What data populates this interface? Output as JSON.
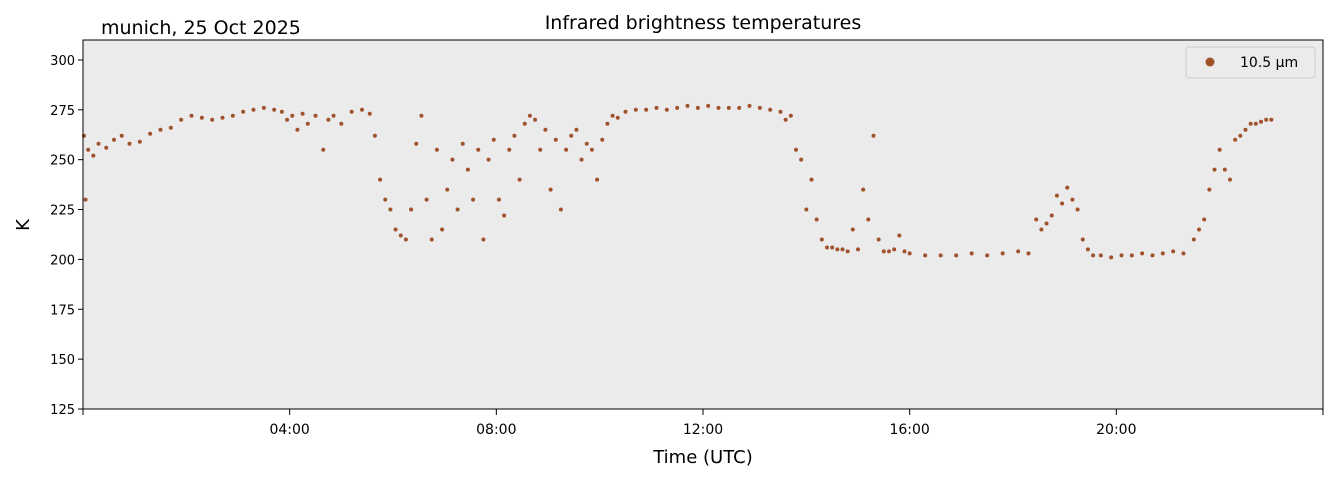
{
  "chart_data": {
    "type": "scatter",
    "title": "Infrared brightness temperatures",
    "subtitle": "munich, 25 Oct 2025",
    "xlabel": "Time (UTC)",
    "ylabel": "K",
    "xlim": [
      0,
      24
    ],
    "ylim": [
      125,
      310
    ],
    "xticks": [
      0,
      4,
      8,
      12,
      16,
      20,
      24
    ],
    "xtick_labels": [
      "",
      "04:00",
      "08:00",
      "12:00",
      "16:00",
      "20:00",
      ""
    ],
    "yticks": [
      125,
      150,
      175,
      200,
      225,
      250,
      275,
      300
    ],
    "ytick_labels": [
      "125",
      "150",
      "175",
      "200",
      "225",
      "250",
      "275",
      "300"
    ],
    "grid": false,
    "legend_position": "top-right",
    "plot_background": "#ebebeb",
    "series": [
      {
        "name": "10.5 µm",
        "color": "#a0522d",
        "x": [
          0.02,
          0.05,
          0.1,
          0.2,
          0.3,
          0.45,
          0.6,
          0.75,
          0.9,
          1.1,
          1.3,
          1.5,
          1.7,
          1.9,
          2.1,
          2.3,
          2.5,
          2.7,
          2.9,
          3.1,
          3.3,
          3.5,
          3.7,
          3.85,
          3.95,
          4.05,
          4.15,
          4.25,
          4.35,
          4.5,
          4.65,
          4.75,
          4.85,
          5.0,
          5.2,
          5.4,
          5.55,
          5.65,
          5.75,
          5.85,
          5.95,
          6.05,
          6.15,
          6.25,
          6.35,
          6.45,
          6.55,
          6.65,
          6.75,
          6.85,
          6.95,
          7.05,
          7.15,
          7.25,
          7.35,
          7.45,
          7.55,
          7.65,
          7.75,
          7.85,
          7.95,
          8.05,
          8.15,
          8.25,
          8.35,
          8.45,
          8.55,
          8.65,
          8.75,
          8.85,
          8.95,
          9.05,
          9.15,
          9.25,
          9.35,
          9.45,
          9.55,
          9.65,
          9.75,
          9.85,
          9.95,
          10.05,
          10.15,
          10.25,
          10.35,
          10.5,
          10.7,
          10.9,
          11.1,
          11.3,
          11.5,
          11.7,
          11.9,
          12.1,
          12.3,
          12.5,
          12.7,
          12.9,
          13.1,
          13.3,
          13.5,
          13.6,
          13.7,
          13.8,
          13.9,
          14.0,
          14.1,
          14.2,
          14.3,
          14.4,
          14.5,
          14.6,
          14.7,
          14.8,
          14.9,
          15.0,
          15.1,
          15.2,
          15.3,
          15.4,
          15.5,
          15.6,
          15.7,
          15.8,
          15.9,
          16.0,
          16.3,
          16.6,
          16.9,
          17.2,
          17.5,
          17.8,
          18.1,
          18.3,
          18.45,
          18.55,
          18.65,
          18.75,
          18.85,
          18.95,
          19.05,
          19.15,
          19.25,
          19.35,
          19.45,
          19.55,
          19.7,
          19.9,
          20.1,
          20.3,
          20.5,
          20.7,
          20.9,
          21.1,
          21.3,
          21.5,
          21.6,
          21.7,
          21.8,
          21.9,
          22.0,
          22.1,
          22.2,
          22.3,
          22.4,
          22.5,
          22.6,
          22.7,
          22.8,
          22.9,
          23.0
        ],
        "y": [
          262,
          230,
          255,
          252,
          258,
          256,
          260,
          262,
          258,
          259,
          263,
          265,
          266,
          270,
          272,
          271,
          270,
          271,
          272,
          274,
          275,
          276,
          275,
          274,
          270,
          272,
          265,
          273,
          268,
          272,
          255,
          270,
          272,
          268,
          274,
          275,
          273,
          262,
          240,
          230,
          225,
          215,
          212,
          210,
          225,
          258,
          272,
          230,
          210,
          255,
          215,
          235,
          250,
          225,
          258,
          245,
          230,
          255,
          210,
          250,
          260,
          230,
          222,
          255,
          262,
          240,
          268,
          272,
          270,
          255,
          265,
          235,
          260,
          225,
          255,
          262,
          265,
          250,
          258,
          255,
          240,
          260,
          268,
          272,
          271,
          274,
          275,
          275,
          276,
          275,
          276,
          277,
          276,
          277,
          276,
          276,
          276,
          277,
          276,
          275,
          274,
          270,
          272,
          255,
          250,
          225,
          240,
          220,
          210,
          206,
          206,
          205,
          205,
          204,
          215,
          205,
          235,
          220,
          262,
          210,
          204,
          204,
          205,
          212,
          204,
          203,
          202,
          202,
          202,
          203,
          202,
          203,
          204,
          203,
          220,
          215,
          218,
          222,
          232,
          228,
          236,
          230,
          225,
          210,
          205,
          202,
          202,
          201,
          202,
          202,
          203,
          202,
          203,
          204,
          203,
          210,
          215,
          220,
          235,
          245,
          255,
          245,
          240,
          260,
          262,
          265,
          268,
          268,
          269,
          270,
          270
        ]
      }
    ]
  }
}
